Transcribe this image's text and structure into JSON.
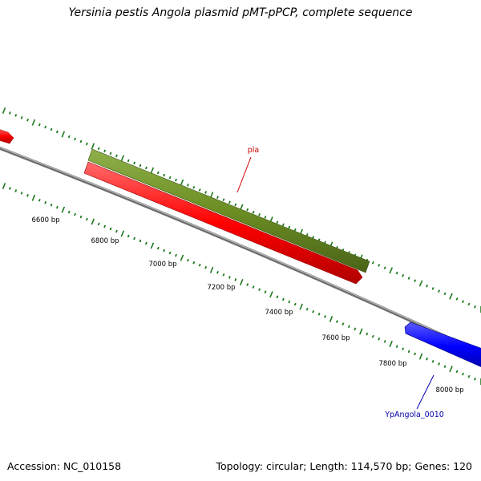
{
  "header": {
    "title": "Yersinia pestis Angola plasmid pMT-pPCP, complete sequence"
  },
  "footer": {
    "accession": "Accession: NC_010158",
    "summary": "Topology: circular; Length: 114,570 bp; Genes: 120"
  },
  "map": {
    "ticks": [
      {
        "label": "6600 bp"
      },
      {
        "label": "6800 bp"
      },
      {
        "label": "7000 bp"
      },
      {
        "label": "7200 bp"
      },
      {
        "label": "7400 bp"
      },
      {
        "label": "7600 bp"
      },
      {
        "label": "7800 bp"
      },
      {
        "label": "8000 bp"
      }
    ],
    "features": [
      {
        "label": "pla",
        "color": "#cc0000"
      },
      {
        "label": "YpAngola_0010",
        "color": "#0000aa"
      }
    ],
    "colors": {
      "backbone": "#8a8a8a",
      "tick": "#1f7a1f",
      "olive_feature": "#6b8e23",
      "red_feature": "#ff0000",
      "blue_feature": "#0000ff"
    }
  }
}
